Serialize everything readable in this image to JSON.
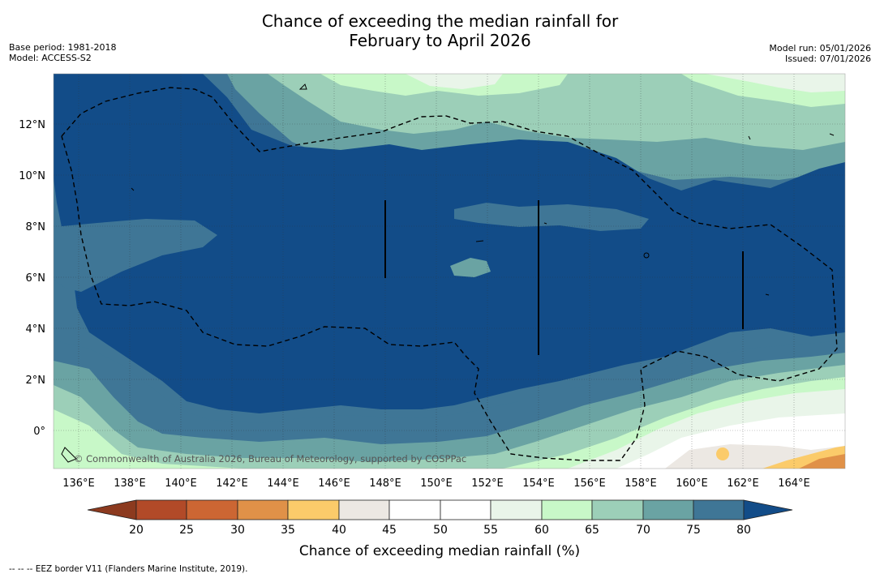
{
  "header": {
    "title_line1": "Chance of exceeding the median rainfall for",
    "title_line2": "February to April 2026",
    "base_period": "Base period: 1981-2018",
    "model": "Model: ACCESS-S2",
    "model_run": "Model run: 05/01/2026",
    "issued": "Issued: 07/01/2026"
  },
  "map": {
    "lon_labels": [
      "136°E",
      "138°E",
      "140°E",
      "142°E",
      "144°E",
      "146°E",
      "148°E",
      "150°E",
      "152°E",
      "154°E",
      "156°E",
      "158°E",
      "160°E",
      "162°E",
      "164°E"
    ],
    "lat_labels": [
      "12°N",
      "10°N",
      "8°N",
      "6°N",
      "4°N",
      "2°N",
      "0°"
    ],
    "copyright": "© Commonwealth of Australia 2026, Bureau of Meteorology, supported by COSPPac"
  },
  "colorbar": {
    "ticks": [
      "20",
      "25",
      "30",
      "35",
      "40",
      "45",
      "50",
      "55",
      "60",
      "65",
      "70",
      "75",
      "80"
    ],
    "label": "Chance of exceeding median rainfall (%)",
    "colors": {
      "below_20": "#8c3a1f",
      "b20_25": "#b24a28",
      "b25_30": "#cc6633",
      "b30_35": "#e09148",
      "b35_40": "#fbcb6a",
      "b40_45": "#ece8e3",
      "b45_55": "#ffffff",
      "b55_60": "#e9f5e9",
      "b60_65": "#c8f8c8",
      "b65_70": "#9ccfb8",
      "b70_75": "#6aa3a3",
      "b75_80": "#3f7696",
      "above_80": "#124c88"
    }
  },
  "footer": {
    "legend_text": "--  --  -- EEZ border V11 (Flanders Marine Institute, 2019)."
  }
}
